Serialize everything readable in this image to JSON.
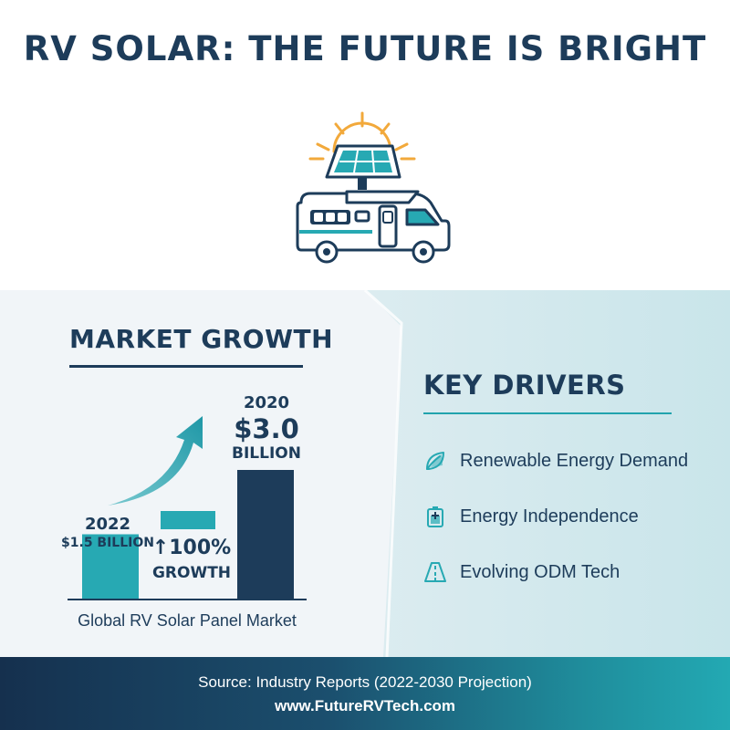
{
  "title": "RV SOLAR: THE FUTURE IS BRIGHT",
  "market": {
    "heading": "MARKET GROWTH",
    "caption": "Global RV Solar Panel Market",
    "labels": {
      "bar1_year": "2022",
      "bar1_value": "$1.5 BILLION",
      "growth_pct": "↑100%",
      "growth_word": "GROWTH",
      "bar3_year": "2020",
      "bar3_value": "$3.0",
      "bar3_unit": "BILLION"
    }
  },
  "chart_data": {
    "type": "bar",
    "categories": [
      "2022",
      "",
      "2020"
    ],
    "values": [
      1.5,
      null,
      3.0
    ],
    "ylabel": "",
    "xlabel": "Global RV Solar Panel Market",
    "colors": [
      "#27a9b3",
      "#27a9b3",
      "#1d3c5a"
    ]
  },
  "drivers": {
    "heading": "KEY DRIVERS",
    "items": [
      {
        "label": "Renewable Energy Demand",
        "icon": "leaf-icon"
      },
      {
        "label": "Energy Independence",
        "icon": "battery-icon"
      },
      {
        "label": "Evolving ODM Tech",
        "icon": "road-icon"
      }
    ]
  },
  "footer": {
    "source": "Source: Industry Reports (2022-2030 Projection)",
    "url": "www.FutureRVTech.com"
  },
  "colors": {
    "navy": "#1d3c5a",
    "teal": "#27a9b3",
    "sun": "#f2a93b"
  }
}
